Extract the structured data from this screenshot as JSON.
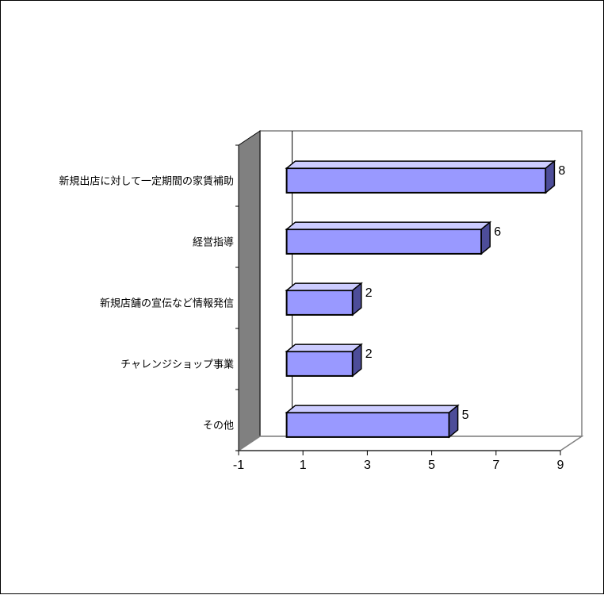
{
  "chart_data": {
    "type": "bar",
    "orientation": "horizontal",
    "style": "3d",
    "categories": [
      "新規出店に対して一定期間の家賃補助",
      "経営指導",
      "新規店舗の宣伝など情報発信",
      "チャレンジショップ事業",
      "その他"
    ],
    "values": [
      8,
      6,
      2,
      2,
      5
    ],
    "xlim": [
      -1,
      9
    ],
    "x_ticks": [
      "-1",
      "1",
      "3",
      "5",
      "7",
      "9"
    ],
    "title": "",
    "xlabel": "",
    "ylabel": "",
    "data_labels": true,
    "legend": false,
    "colors": {
      "bar_front": "#9999ff",
      "bar_top": "#ccccff",
      "bar_side": "#4d4d99",
      "wall": "#808080",
      "floor": "#ffffff",
      "stroke": "#000000"
    }
  }
}
